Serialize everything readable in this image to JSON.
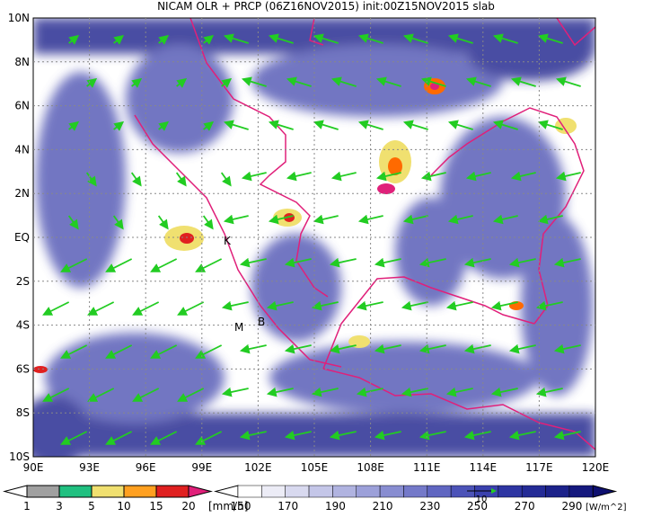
{
  "title": "NICAM OLR + PRCP (06Z16NOV2015) init:00Z15NOV2015 slab",
  "lat_labels": [
    "10N",
    "8N",
    "6N",
    "4N",
    "2N",
    "EQ",
    "2S",
    "4S",
    "6S",
    "8S",
    "10S"
  ],
  "lon_labels": [
    "90E",
    "93E",
    "96E",
    "99E",
    "102E",
    "105E",
    "108E",
    "111E",
    "114E",
    "117E",
    "120E"
  ],
  "stations": [
    "K",
    "M",
    "B"
  ],
  "prcp_bar": {
    "labels": [
      "1",
      "3",
      "5",
      "10",
      "15",
      "20"
    ],
    "unit": "[mm/h]"
  },
  "olr_bar": {
    "labels": [
      "150",
      "170",
      "190",
      "210",
      "230",
      "250",
      "270",
      "290"
    ],
    "unit": "[W/m^2]"
  },
  "vector_ref": "10"
}
